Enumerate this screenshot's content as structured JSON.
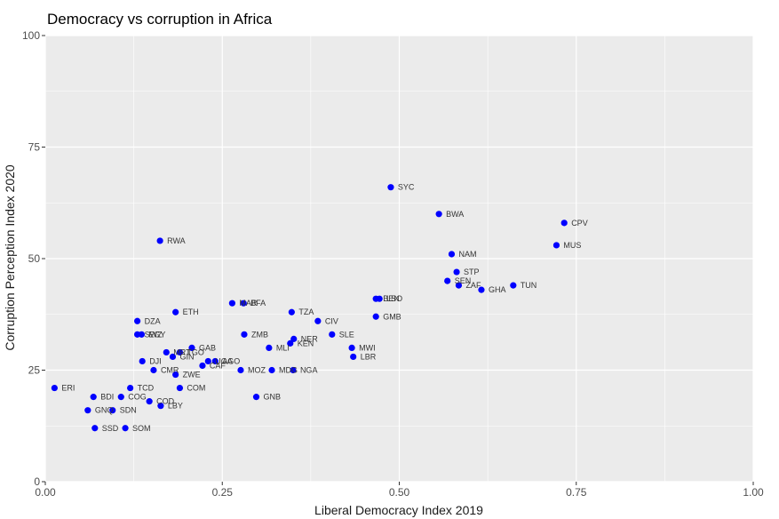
{
  "chart_data": {
    "type": "scatter",
    "title": "Democracy vs corruption in Africa",
    "xlabel": "Liberal Democracy Index 2019",
    "ylabel": "Corruption Perception Index 2020",
    "xlim": [
      0,
      1
    ],
    "ylim": [
      0,
      100
    ],
    "x_ticks": [
      0,
      0.25,
      0.5,
      0.75,
      1
    ],
    "x_tick_labels": [
      "0.00",
      "0.25",
      "0.50",
      "0.75",
      "1.00"
    ],
    "y_ticks": [
      0,
      25,
      50,
      75,
      100
    ],
    "y_tick_labels": [
      "0",
      "25",
      "50",
      "75",
      "100"
    ],
    "grid": true,
    "point_color": "#0000ff",
    "panel_color": "#ebebeb",
    "points": [
      {
        "label": "ERI",
        "x": 0.013,
        "y": 21
      },
      {
        "label": "BDI",
        "x": 0.068,
        "y": 19
      },
      {
        "label": "COG",
        "x": 0.107,
        "y": 19
      },
      {
        "label": "GNQ",
        "x": 0.06,
        "y": 16
      },
      {
        "label": "SDN",
        "x": 0.095,
        "y": 16
      },
      {
        "label": "SSD",
        "x": 0.07,
        "y": 12
      },
      {
        "label": "SOM",
        "x": 0.113,
        "y": 12
      },
      {
        "label": "TCD",
        "x": 0.12,
        "y": 21
      },
      {
        "label": "COD",
        "x": 0.147,
        "y": 18
      },
      {
        "label": "LBY",
        "x": 0.163,
        "y": 17
      },
      {
        "label": "COM",
        "x": 0.19,
        "y": 21
      },
      {
        "label": "CMR",
        "x": 0.153,
        "y": 25
      },
      {
        "label": "DJI",
        "x": 0.137,
        "y": 27
      },
      {
        "label": "ZWE",
        "x": 0.184,
        "y": 24
      },
      {
        "label": "GIN",
        "x": 0.18,
        "y": 28
      },
      {
        "label": "MRT",
        "x": 0.171,
        "y": 29
      },
      {
        "label": "TGO",
        "x": 0.19,
        "y": 29
      },
      {
        "label": "GAB",
        "x": 0.207,
        "y": 30
      },
      {
        "label": "CAF",
        "x": 0.222,
        "y": 26
      },
      {
        "label": "UGA",
        "x": 0.23,
        "y": 27
      },
      {
        "label": "AGO",
        "x": 0.24,
        "y": 27
      },
      {
        "label": "DZA",
        "x": 0.13,
        "y": 36
      },
      {
        "label": "SWZ",
        "x": 0.13,
        "y": 33
      },
      {
        "label": "EGY",
        "x": 0.136,
        "y": 33
      },
      {
        "label": "ETH",
        "x": 0.184,
        "y": 38
      },
      {
        "label": "RWA",
        "x": 0.162,
        "y": 54
      },
      {
        "label": "MAR",
        "x": 0.264,
        "y": 40
      },
      {
        "label": "BFA",
        "x": 0.28,
        "y": 40
      },
      {
        "label": "ZMB",
        "x": 0.281,
        "y": 33
      },
      {
        "label": "MOZ",
        "x": 0.276,
        "y": 25
      },
      {
        "label": "GNB",
        "x": 0.298,
        "y": 19
      },
      {
        "label": "MDG",
        "x": 0.32,
        "y": 25
      },
      {
        "label": "NGA",
        "x": 0.35,
        "y": 25
      },
      {
        "label": "MLI",
        "x": 0.316,
        "y": 30
      },
      {
        "label": "KEN",
        "x": 0.346,
        "y": 31
      },
      {
        "label": "NER",
        "x": 0.351,
        "y": 32
      },
      {
        "label": "TZA",
        "x": 0.348,
        "y": 38
      },
      {
        "label": "CIV",
        "x": 0.385,
        "y": 36
      },
      {
        "label": "SLE",
        "x": 0.405,
        "y": 33
      },
      {
        "label": "MWI",
        "x": 0.433,
        "y": 30
      },
      {
        "label": "LBR",
        "x": 0.435,
        "y": 28
      },
      {
        "label": "GMB",
        "x": 0.467,
        "y": 37
      },
      {
        "label": "BEN",
        "x": 0.467,
        "y": 41
      },
      {
        "label": "LSO",
        "x": 0.472,
        "y": 41
      },
      {
        "label": "SYC",
        "x": 0.488,
        "y": 66
      },
      {
        "label": "BWA",
        "x": 0.556,
        "y": 60
      },
      {
        "label": "NAM",
        "x": 0.574,
        "y": 51
      },
      {
        "label": "STP",
        "x": 0.581,
        "y": 47
      },
      {
        "label": "SEN",
        "x": 0.568,
        "y": 45
      },
      {
        "label": "ZAF",
        "x": 0.584,
        "y": 44
      },
      {
        "label": "GHA",
        "x": 0.616,
        "y": 43
      },
      {
        "label": "TUN",
        "x": 0.661,
        "y": 44
      },
      {
        "label": "CPV",
        "x": 0.733,
        "y": 58
      },
      {
        "label": "MUS",
        "x": 0.722,
        "y": 53
      }
    ]
  }
}
